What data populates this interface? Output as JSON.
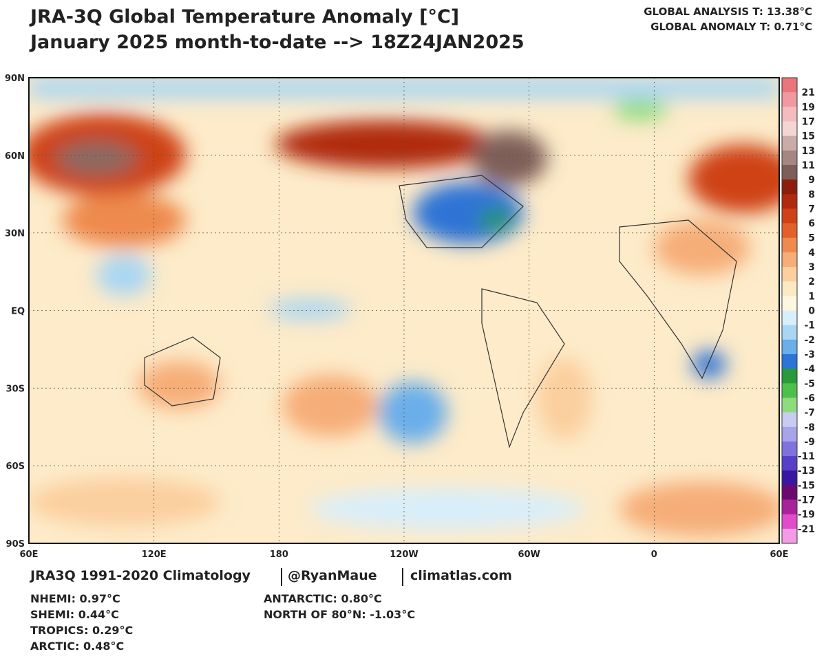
{
  "header": {
    "title_line1": "JRA-3Q Global Temperature Anomaly [°C]",
    "title_line2": "January 2025 month-to-date --> 18Z24JAN2025",
    "global_analysis": "GLOBAL ANALYSIS T: 13.38°C",
    "global_anomaly": "GLOBAL ANOMALY T: 0.71°C"
  },
  "map": {
    "lat_labels": [
      "90N",
      "60N",
      "30N",
      "EQ",
      "30S",
      "60S",
      "90S"
    ],
    "lon_labels": [
      "60E",
      "120E",
      "180",
      "120W",
      "60W",
      "0",
      "60E"
    ]
  },
  "colorbar": {
    "labels": [
      "21",
      "19",
      "17",
      "15",
      "13",
      "11",
      "9",
      "8",
      "7",
      "6",
      "5",
      "4",
      "3",
      "2",
      "1",
      "0",
      "-1",
      "-2",
      "-3",
      "-4",
      "-5",
      "-6",
      "-7",
      "-8",
      "-9",
      "-11",
      "-13",
      "-15",
      "-17",
      "-19",
      "-21"
    ],
    "colors": [
      "#e8767a",
      "#f09aa0",
      "#f5bcbe",
      "#f2d6d4",
      "#c9aca8",
      "#a48780",
      "#7e5e58",
      "#8b1e0c",
      "#b02a10",
      "#cf4218",
      "#e2612b",
      "#ee8a4e",
      "#f6ad78",
      "#fbcf9e",
      "#fde8c4",
      "#fdf7df",
      "#d8eefa",
      "#a9d6f3",
      "#6aaeea",
      "#2e73d6",
      "#2a9a3a",
      "#4fbf4c",
      "#8fdc7f",
      "#c9ccf2",
      "#a8a4ea",
      "#7f72dc",
      "#5640c8",
      "#3818a0",
      "#6a0a6e",
      "#a8229a",
      "#e04ccc",
      "#f59ae6"
    ]
  },
  "footer": {
    "credit": [
      "JRA3Q 1991-2020 Climatology",
      "@RyanMaue",
      "climatlas.com"
    ],
    "stats_left": [
      "NHEMI: 0.97°C",
      "SHEMI: 0.44°C",
      "TROPICS: 0.29°C",
      "ARCTIC: 0.48°C"
    ],
    "stats_right": [
      "ANTARCTIC: 0.80°C",
      "NORTH OF 80°N: -1.03°C"
    ]
  }
}
